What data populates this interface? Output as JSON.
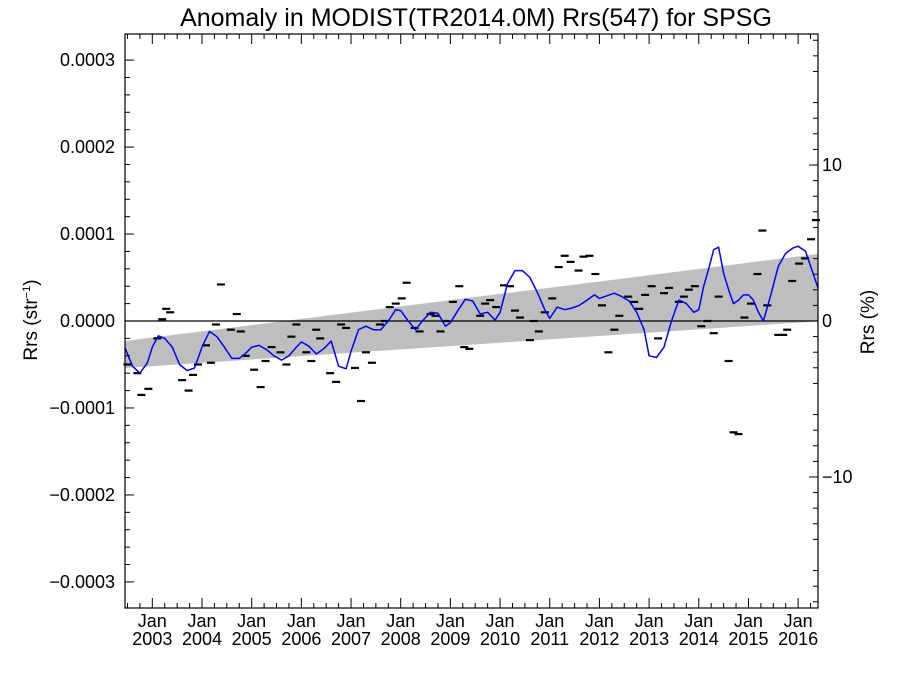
{
  "chart_data": {
    "type": "line",
    "title": "Anomaly in MODIST(TR2014.0M) Rrs(547) for SPSG",
    "ylabel_main": "Rrs (str",
    "ylabel_sup": "−1",
    "ylabel_close": ")",
    "y2label": "Rrs (%)",
    "xlim": [
      2002.45,
      2016.4
    ],
    "ylim": [
      -0.00033,
      0.00033
    ],
    "y2lim": [
      -18.4,
      18.4
    ],
    "grid": false,
    "yticks": [
      {
        "value": -0.0003,
        "label": "−0.0003"
      },
      {
        "value": -0.0002,
        "label": "−0.0002"
      },
      {
        "value": -0.0001,
        "label": "−0.0001"
      },
      {
        "value": 0.0,
        "label": "0.0000"
      },
      {
        "value": 0.0001,
        "label": "0.0001"
      },
      {
        "value": 0.0002,
        "label": "0.0002"
      },
      {
        "value": 0.0003,
        "label": "0.0003"
      }
    ],
    "y2ticks": [
      {
        "value": -10,
        "label": "−10"
      },
      {
        "value": 0,
        "label": "0"
      },
      {
        "value": 10,
        "label": "10"
      }
    ],
    "xticks": [
      {
        "value": 2003.0,
        "month": "Jan",
        "year": "2003"
      },
      {
        "value": 2004.0,
        "month": "Jan",
        "year": "2004"
      },
      {
        "value": 2005.0,
        "month": "Jan",
        "year": "2005"
      },
      {
        "value": 2006.0,
        "month": "Jan",
        "year": "2006"
      },
      {
        "value": 2007.0,
        "month": "Jan",
        "year": "2007"
      },
      {
        "value": 2008.0,
        "month": "Jan",
        "year": "2008"
      },
      {
        "value": 2009.0,
        "month": "Jan",
        "year": "2009"
      },
      {
        "value": 2010.0,
        "month": "Jan",
        "year": "2010"
      },
      {
        "value": 2011.0,
        "month": "Jan",
        "year": "2011"
      },
      {
        "value": 2012.0,
        "month": "Jan",
        "year": "2012"
      },
      {
        "value": 2013.0,
        "month": "Jan",
        "year": "2013"
      },
      {
        "value": 2014.0,
        "month": "Jan",
        "year": "2014"
      },
      {
        "value": 2015.0,
        "month": "Jan",
        "year": "2015"
      },
      {
        "value": 2016.0,
        "month": "Jan",
        "year": "2016"
      }
    ],
    "trend_band": {
      "x": [
        2002.45,
        2016.4
      ],
      "lower": [
        -5.4e-05,
        -3e-07
      ],
      "upper": [
        -2.3e-05,
        7.7e-05
      ]
    },
    "smoothed_series": {
      "color": "#0000ff",
      "x": [
        2002.45,
        2002.6,
        2002.75,
        2002.9,
        2003.0,
        2003.12,
        2003.25,
        2003.4,
        2003.55,
        2003.7,
        2003.85,
        2004.0,
        2004.15,
        2004.3,
        2004.45,
        2004.6,
        2004.75,
        2004.9,
        2005.0,
        2005.15,
        2005.3,
        2005.45,
        2005.6,
        2005.75,
        2005.9,
        2006.0,
        2006.15,
        2006.3,
        2006.45,
        2006.6,
        2006.75,
        2006.9,
        2007.0,
        2007.15,
        2007.3,
        2007.45,
        2007.6,
        2007.75,
        2007.9,
        2008.0,
        2008.15,
        2008.3,
        2008.45,
        2008.6,
        2008.75,
        2008.9,
        2009.0,
        2009.15,
        2009.3,
        2009.45,
        2009.6,
        2009.75,
        2009.9,
        2010.0,
        2010.15,
        2010.3,
        2010.45,
        2010.6,
        2010.75,
        2010.9,
        2011.0,
        2011.15,
        2011.3,
        2011.45,
        2011.6,
        2011.75,
        2011.9,
        2012.0,
        2012.15,
        2012.3,
        2012.45,
        2012.6,
        2012.75,
        2012.9,
        2013.0,
        2013.15,
        2013.3,
        2013.45,
        2013.6,
        2013.75,
        2013.9,
        2014.0,
        2014.1,
        2014.2,
        2014.3,
        2014.4,
        2014.5,
        2014.6,
        2014.7,
        2014.8,
        2014.9,
        2015.0,
        2015.1,
        2015.2,
        2015.3,
        2015.45,
        2015.6,
        2015.75,
        2015.9,
        2016.0,
        2016.15,
        2016.3,
        2016.4
      ],
      "y": [
        -3.1e-05,
        -5.2e-05,
        -6e-05,
        -4.8e-05,
        -3e-05,
        -1.7e-05,
        -2e-05,
        -3e-05,
        -5e-05,
        -5.7e-05,
        -5.4e-05,
        -3e-05,
        -1.2e-05,
        -1.8e-05,
        -3e-05,
        -4.3e-05,
        -4.3e-05,
        -3.6e-05,
        -3e-05,
        -2.8e-05,
        -3.3e-05,
        -4e-05,
        -4.5e-05,
        -4e-05,
        -3e-05,
        -2.4e-05,
        -2.9e-05,
        -3.8e-05,
        -3.2e-05,
        -2.3e-05,
        -5.2e-05,
        -5.5e-05,
        -3.5e-05,
        -1e-05,
        -6e-06,
        -1e-05,
        -1e-05,
        0.0,
        1.3e-05,
        1.2e-05,
        0.0,
        -1e-05,
        1e-06,
        1e-05,
        9e-06,
        -6e-06,
        -2e-06,
        1.2e-05,
        2.5e-05,
        2.3e-05,
        8e-06,
        1e-05,
        1e-06,
        1e-05,
        4.3e-05,
        5.8e-05,
        5.8e-05,
        5e-05,
        3.3e-05,
        1.3e-05,
        3e-06,
        1.6e-05,
        1.3e-05,
        1.5e-05,
        1.8e-05,
        2.4e-05,
        3e-05,
        2.6e-05,
        2.9e-05,
        3.2e-05,
        2.8e-05,
        2.3e-05,
        1e-05,
        -1e-05,
        -4e-05,
        -4.2e-05,
        -3e-05,
        0.0,
        2.4e-05,
        2e-05,
        1e-05,
        1.3e-05,
        4e-05,
        6e-05,
        8.2e-05,
        8.5e-05,
        5.5e-05,
        3.6e-05,
        2e-05,
        2.4e-05,
        3e-05,
        3e-05,
        2.4e-05,
        1e-05,
        0.0,
        3e-05,
        6.3e-05,
        7.8e-05,
        8.4e-05,
        8.6e-05,
        8e-05,
        5.5e-05,
        3.8e-05
      ]
    },
    "monthly_points": {
      "color": "#000000",
      "x": [
        2002.5,
        2002.7,
        2002.78,
        2002.92,
        2003.1,
        2003.2,
        2003.28,
        2003.36,
        2003.6,
        2003.73,
        2003.82,
        2003.92,
        2004.08,
        2004.18,
        2004.28,
        2004.38,
        2004.58,
        2004.7,
        2004.78,
        2004.88,
        2005.05,
        2005.18,
        2005.28,
        2005.4,
        2005.58,
        2005.7,
        2005.8,
        2005.9,
        2006.1,
        2006.2,
        2006.3,
        2006.38,
        2006.58,
        2006.7,
        2006.8,
        2006.9,
        2007.08,
        2007.2,
        2007.3,
        2007.42,
        2007.58,
        2007.68,
        2007.78,
        2007.9,
        2008.02,
        2008.12,
        2008.28,
        2008.38,
        2008.6,
        2008.7,
        2008.8,
        2008.9,
        2009.05,
        2009.18,
        2009.28,
        2009.38,
        2009.6,
        2009.7,
        2009.8,
        2009.92,
        2010.08,
        2010.2,
        2010.3,
        2010.4,
        2010.6,
        2010.68,
        2010.78,
        2010.9,
        2011.05,
        2011.18,
        2011.3,
        2011.42,
        2011.58,
        2011.68,
        2011.8,
        2011.92,
        2012.05,
        2012.18,
        2012.3,
        2012.4,
        2012.58,
        2012.7,
        2012.8,
        2012.92,
        2013.05,
        2013.18,
        2013.3,
        2013.4,
        2013.6,
        2013.7,
        2013.8,
        2013.92,
        2014.05,
        2014.18,
        2014.3,
        2014.4,
        2014.6,
        2014.7,
        2014.8,
        2014.92,
        2015.05,
        2015.18,
        2015.28,
        2015.38,
        2015.6,
        2015.7,
        2015.78,
        2015.88,
        2016.02,
        2016.14,
        2016.26,
        2016.36
      ],
      "y": [
        -5e-05,
        -6e-05,
        -8.5e-05,
        -7.8e-05,
        -2e-05,
        2e-06,
        1.4e-05,
        1e-05,
        -6.8e-05,
        -8e-05,
        -6.2e-05,
        -5e-05,
        -2.8e-05,
        -4.8e-05,
        -4e-06,
        4.2e-05,
        -1e-05,
        8e-06,
        -1.2e-05,
        -4e-05,
        -5.6e-05,
        -7.6e-05,
        -4.6e-05,
        -3e-05,
        -3.6e-05,
        -5e-05,
        -1.8e-05,
        -4e-06,
        -3.6e-05,
        -4.6e-05,
        -1e-05,
        -2e-05,
        -6e-05,
        -7e-05,
        -4e-06,
        -8e-06,
        -5.4e-05,
        -9.2e-05,
        -3.6e-05,
        -4.8e-05,
        -4e-06,
        0.0,
        1.6e-05,
        2e-05,
        2.6e-05,
        4.4e-05,
        -8e-06,
        -1.2e-05,
        8e-06,
        6e-06,
        -1.2e-05,
        0.0,
        2.2e-05,
        4e-05,
        -3e-05,
        -3.2e-05,
        6e-06,
        2e-05,
        2.4e-05,
        1.6e-05,
        4.1e-05,
        4e-05,
        1.2e-05,
        4e-06,
        -2.2e-05,
        0.0,
        -1.2e-05,
        1e-05,
        2.6e-05,
        6.2e-05,
        7.5e-05,
        6.8e-05,
        5.8e-05,
        7.4e-05,
        7.5e-05,
        5.4e-05,
        1.8e-05,
        -3.6e-05,
        -1e-05,
        6e-06,
        2.8e-05,
        2.2e-05,
        1.4e-05,
        3e-05,
        4e-05,
        -2e-05,
        3.2e-05,
        3.8e-05,
        2.2e-05,
        2.8e-05,
        3.6e-05,
        4e-05,
        -6e-06,
        0.0,
        -1.4e-05,
        2.8e-05,
        -4.6e-05,
        -0.000128,
        -0.00013,
        4e-06,
        2e-05,
        5.4e-05,
        0.000104,
        1.8e-05,
        -1.6e-05,
        -1.6e-05,
        -1e-05,
        4.6e-05,
        6.6e-05,
        7.2e-05,
        9.4e-05,
        0.000116
      ]
    }
  }
}
